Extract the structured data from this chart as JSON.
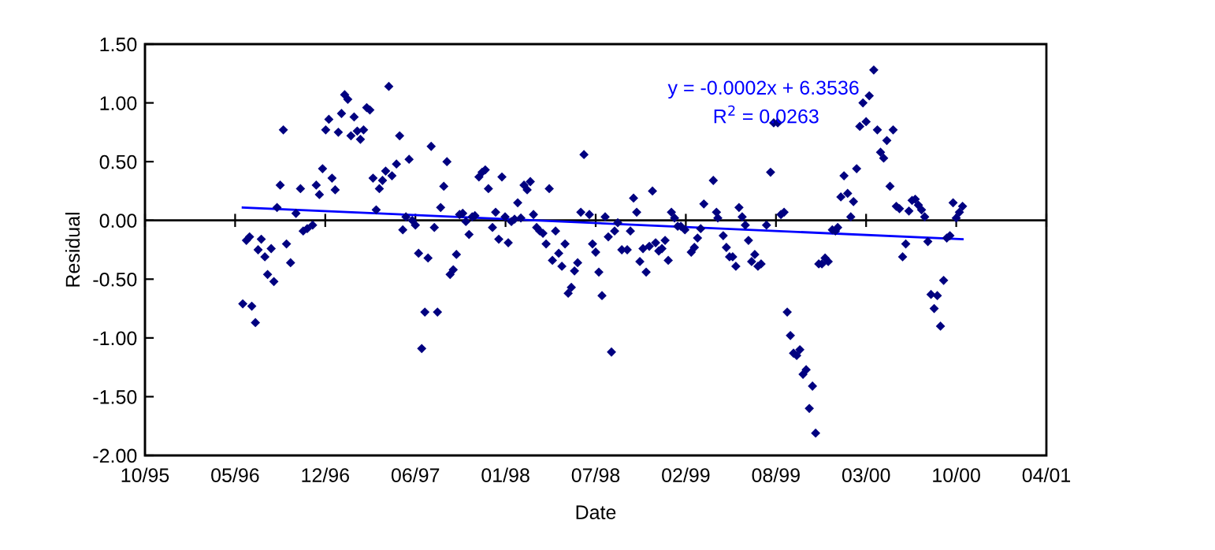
{
  "chart_data": {
    "type": "scatter",
    "xlabel": "Date",
    "ylabel": "Residual",
    "xlim": [
      "1995-10-31",
      "2001-04-22"
    ],
    "xticks": [
      {
        "value": "1995-10-31",
        "label": "10/95"
      },
      {
        "value": "1996-05-18",
        "label": "05/96"
      },
      {
        "value": "1996-12-04",
        "label": "12/96"
      },
      {
        "value": "1997-06-22",
        "label": "06/97"
      },
      {
        "value": "1998-01-08",
        "label": "01/98"
      },
      {
        "value": "1998-07-27",
        "label": "07/98"
      },
      {
        "value": "1999-02-12",
        "label": "02/99"
      },
      {
        "value": "1999-08-31",
        "label": "08/99"
      },
      {
        "value": "2000-03-18",
        "label": "03/00"
      },
      {
        "value": "2000-10-04",
        "label": "10/00"
      },
      {
        "value": "2001-04-22",
        "label": "04/01"
      }
    ],
    "ylim": [
      -2.0,
      1.5
    ],
    "yticks": [
      {
        "value": -2.0,
        "label": "-2.00"
      },
      {
        "value": -1.5,
        "label": "-1.50"
      },
      {
        "value": -1.0,
        "label": "-1.00"
      },
      {
        "value": -0.5,
        "label": "-0.50"
      },
      {
        "value": 0.0,
        "label": "0.00"
      },
      {
        "value": 0.5,
        "label": "0.50"
      },
      {
        "value": 1.0,
        "label": "1.00"
      },
      {
        "value": 1.5,
        "label": "1.50"
      }
    ],
    "grid": false,
    "legend": false,
    "marker": "diamond",
    "ref_lines": [
      {
        "axis": "y",
        "value": 0,
        "color": "#000000",
        "line_style": "solid"
      }
    ],
    "annotations": [
      "y = -0.0002x + 6.3536",
      "R$^{2}$ = 0.0263"
    ],
    "series": [
      {
        "color": "#000080",
        "x": [
          "1996-06-04",
          "1996-06-24",
          "1996-07-02",
          "1996-06-12",
          "1996-06-19",
          "1996-07-08",
          "1996-07-15",
          "1996-07-23",
          "1996-07-29",
          "1996-08-12",
          "1996-08-06",
          "1996-08-19",
          "1996-08-26",
          "1996-09-02",
          "1996-09-09",
          "1996-09-18",
          "1996-09-30",
          "1996-10-10",
          "1996-10-16",
          "1996-10-25",
          "1996-11-06",
          "1996-11-14",
          "1996-11-21",
          "1996-11-28",
          "1996-12-05",
          "1996-12-12",
          "1996-12-19",
          "1996-12-26",
          "1997-01-02",
          "1997-01-09",
          "1997-01-16",
          "1997-01-23",
          "1997-01-30",
          "1997-02-06",
          "1997-02-13",
          "1997-02-20",
          "1997-02-27",
          "1997-03-06",
          "1997-03-13",
          "1997-03-20",
          "1997-03-27",
          "1997-04-03",
          "1997-04-10",
          "1997-04-17",
          "1997-04-24",
          "1997-05-01",
          "1997-05-11",
          "1997-05-18",
          "1997-05-25",
          "1997-06-01",
          "1997-06-08",
          "1997-06-15",
          "1997-06-22",
          "1997-06-29",
          "1997-07-06",
          "1997-07-13",
          "1997-07-20",
          "1997-07-27",
          "1997-08-03",
          "1997-08-10",
          "1997-08-17",
          "1997-08-24",
          "1997-08-31",
          "1997-09-07",
          "1997-09-14",
          "1997-09-21",
          "1997-09-28",
          "1997-10-05",
          "1997-10-12",
          "1997-10-19",
          "1997-10-26",
          "1997-11-01",
          "1997-11-10",
          "1997-11-17",
          "1997-11-24",
          "1997-12-01",
          "1997-12-10",
          "1997-12-17",
          "1997-12-24",
          "1997-12-31",
          "1998-01-07",
          "1998-01-14",
          "1998-01-21",
          "1998-01-28",
          "1998-02-04",
          "1998-02-11",
          "1998-02-18",
          "1998-02-25",
          "1998-03-04",
          "1998-03-11",
          "1998-03-18",
          "1998-03-25",
          "1998-04-01",
          "1998-04-08",
          "1998-04-15",
          "1998-04-22",
          "1998-04-29",
          "1998-05-06",
          "1998-05-13",
          "1998-05-20",
          "1998-05-27",
          "1998-06-03",
          "1998-06-10",
          "1998-06-17",
          "1998-06-24",
          "1998-07-01",
          "1998-07-13",
          "1998-07-20",
          "1998-07-27",
          "1998-08-03",
          "1998-08-10",
          "1998-08-17",
          "1998-08-24",
          "1998-08-31",
          "1998-09-07",
          "1998-09-14",
          "1998-09-23",
          "1998-10-05",
          "1998-10-12",
          "1998-10-19",
          "1998-10-26",
          "1998-11-02",
          "1998-11-09",
          "1998-11-16",
          "1998-11-23",
          "1998-11-30",
          "1998-12-07",
          "1998-12-14",
          "1998-12-21",
          "1998-12-28",
          "1999-01-04",
          "1999-01-11",
          "1999-01-18",
          "1999-01-25",
          "1999-02-01",
          "1999-02-10",
          "1999-02-24",
          "1999-03-03",
          "1999-03-10",
          "1999-03-17",
          "1999-03-24",
          "1999-04-14",
          "1999-04-21",
          "1999-04-24",
          "1999-05-06",
          "1999-05-13",
          "1999-05-20",
          "1999-05-27",
          "1999-06-03",
          "1999-06-10",
          "1999-06-17",
          "1999-06-24",
          "1999-07-01",
          "1999-07-08",
          "1999-07-15",
          "1999-07-22",
          "1999-07-29",
          "1999-08-10",
          "1999-08-19",
          "1999-08-26",
          "1999-09-04",
          "1999-09-11",
          "1999-09-18",
          "1999-09-25",
          "1999-10-02",
          "1999-10-09",
          "1999-10-16",
          "1999-10-23",
          "1999-10-30",
          "1999-11-06",
          "1999-11-13",
          "1999-11-20",
          "1999-11-27",
          "1999-12-04",
          "1999-12-11",
          "1999-12-18",
          "1999-12-25",
          "2000-01-03",
          "2000-01-10",
          "2000-01-15",
          "2000-01-22",
          "2000-01-29",
          "2000-02-06",
          "2000-02-13",
          "2000-02-19",
          "2000-02-26",
          "2000-03-04",
          "2000-03-11",
          "2000-03-18",
          "2000-03-25",
          "2000-04-04",
          "2000-04-12",
          "2000-04-19",
          "2000-04-26",
          "2000-05-03",
          "2000-05-10",
          "2000-05-17",
          "2000-05-24",
          "2000-05-31",
          "2000-06-07",
          "2000-06-14",
          "2000-06-21",
          "2000-06-28",
          "2000-07-05",
          "2000-07-12",
          "2000-07-19",
          "2000-07-26",
          "2000-08-02",
          "2000-08-09",
          "2000-08-16",
          "2000-08-23",
          "2000-08-30",
          "2000-09-06",
          "2000-09-13",
          "2000-09-20",
          "2000-09-27",
          "2000-10-04",
          "2000-10-11",
          "2000-10-18"
        ],
        "values": [
          -0.71,
          -0.73,
          -0.87,
          -0.17,
          -0.14,
          -0.25,
          -0.16,
          -0.31,
          -0.46,
          -0.52,
          -0.24,
          0.11,
          0.3,
          0.77,
          -0.2,
          -0.36,
          0.06,
          0.27,
          -0.09,
          -0.07,
          -0.04,
          0.3,
          0.22,
          0.44,
          0.77,
          0.86,
          0.36,
          0.26,
          0.75,
          0.91,
          1.07,
          1.03,
          0.72,
          0.88,
          0.76,
          0.69,
          0.77,
          0.96,
          0.94,
          0.36,
          0.09,
          0.27,
          0.34,
          0.42,
          1.14,
          0.38,
          0.48,
          0.72,
          -0.08,
          0.03,
          0.52,
          0.0,
          -0.04,
          -0.28,
          -1.09,
          -0.78,
          -0.32,
          0.63,
          -0.06,
          -0.78,
          0.11,
          0.29,
          0.5,
          -0.46,
          -0.42,
          -0.29,
          0.05,
          0.06,
          -0.01,
          -0.12,
          0.03,
          0.04,
          0.37,
          0.41,
          0.43,
          0.27,
          -0.06,
          0.07,
          -0.16,
          0.37,
          0.03,
          -0.19,
          -0.01,
          0.01,
          0.15,
          0.02,
          0.3,
          0.26,
          0.33,
          0.05,
          -0.06,
          -0.09,
          -0.11,
          -0.2,
          0.27,
          -0.34,
          -0.09,
          -0.28,
          -0.39,
          -0.2,
          -0.62,
          -0.57,
          -0.43,
          -0.36,
          0.07,
          0.56,
          0.05,
          -0.2,
          -0.27,
          -0.44,
          -0.64,
          0.03,
          -0.14,
          -1.12,
          -0.09,
          -0.02,
          -0.25,
          -0.25,
          -0.09,
          0.19,
          0.07,
          -0.35,
          -0.24,
          -0.44,
          -0.22,
          0.25,
          -0.19,
          -0.26,
          -0.24,
          -0.17,
          -0.34,
          0.07,
          0.02,
          -0.05,
          -0.05,
          -0.08,
          -0.27,
          -0.23,
          -0.15,
          -0.07,
          0.14,
          0.34,
          0.07,
          0.02,
          -0.13,
          -0.23,
          -0.31,
          -0.31,
          -0.39,
          0.11,
          0.03,
          -0.04,
          -0.17,
          -0.35,
          -0.29,
          -0.39,
          -0.37,
          -0.04,
          0.41,
          0.83,
          0.83,
          0.05,
          0.07,
          -0.78,
          -0.98,
          -1.13,
          -1.15,
          -1.1,
          -1.31,
          -1.27,
          -1.6,
          -1.41,
          -1.81,
          -0.37,
          -0.37,
          -0.32,
          -0.35,
          -0.08,
          -0.09,
          -0.06,
          0.2,
          0.38,
          0.23,
          0.03,
          0.16,
          0.44,
          0.8,
          1.0,
          0.84,
          1.06,
          1.28,
          0.77,
          0.58,
          0.53,
          0.68,
          0.29,
          0.77,
          0.12,
          0.1,
          -0.31,
          -0.2,
          0.08,
          0.17,
          0.18,
          0.13,
          0.09,
          0.03,
          -0.18,
          -0.63,
          -0.75,
          -0.64,
          -0.9,
          -0.51,
          -0.15,
          -0.13,
          0.15,
          0.02,
          0.07,
          0.12
        ]
      },
      {
        "type": "line",
        "color": "#0000ff",
        "marker": "none",
        "line_style": "solid",
        "x": [
          "1996-06-04",
          "2000-10-18"
        ],
        "values": [
          0.11,
          -0.16
        ]
      }
    ]
  }
}
